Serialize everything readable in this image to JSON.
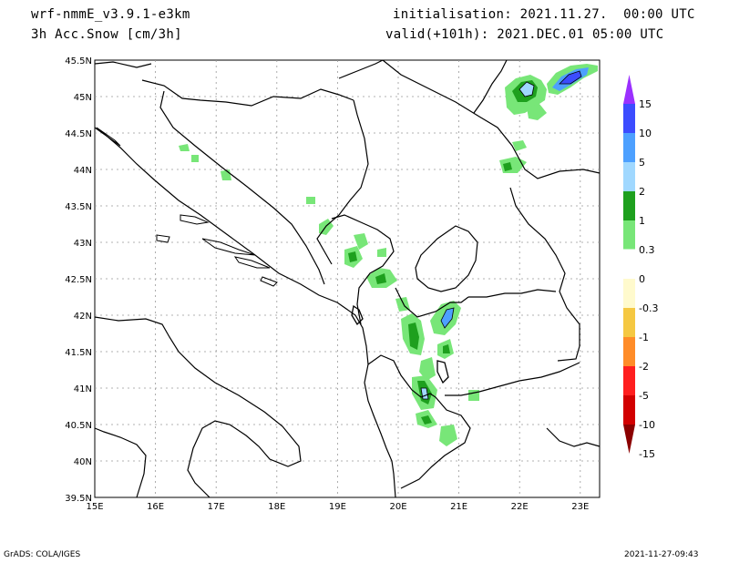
{
  "header": {
    "model": "wrf-nmmE_v3.9.1-e3km",
    "field": "3h Acc.Snow [cm/3h]",
    "init": "initialisation: 2021.11.27.  00:00 UTC",
    "valid": "valid(+101h): 2021.DEC.01 05:00 UTC"
  },
  "map": {
    "lon_ticks": [
      "15E",
      "16E",
      "17E",
      "18E",
      "19E",
      "20E",
      "21E",
      "22E",
      "23E"
    ],
    "lat_ticks": [
      "39.5N",
      "40N",
      "40.5N",
      "41N",
      "41.5N",
      "42N",
      "42.5N",
      "43N",
      "43.5N",
      "44N",
      "44.5N",
      "45N",
      "45.5N"
    ]
  },
  "colorbar": {
    "labels": [
      "15",
      "10",
      "5",
      "2",
      "1",
      "0.3",
      "0",
      "-0.3",
      "-1",
      "-2",
      "-5",
      "-10",
      "-15"
    ],
    "colors": [
      "#9b30ff",
      "#3c4cff",
      "#4da0ff",
      "#a0d8ff",
      "#1ea01e",
      "#78e678",
      "#ffffff",
      "#fffacd",
      "#f5c842",
      "#ff8c28",
      "#ff1e1e",
      "#d20000",
      "#8b0000"
    ]
  },
  "footer": {
    "left": "GrADS: COLA/IGES",
    "right": "2021-11-27-09:43"
  }
}
